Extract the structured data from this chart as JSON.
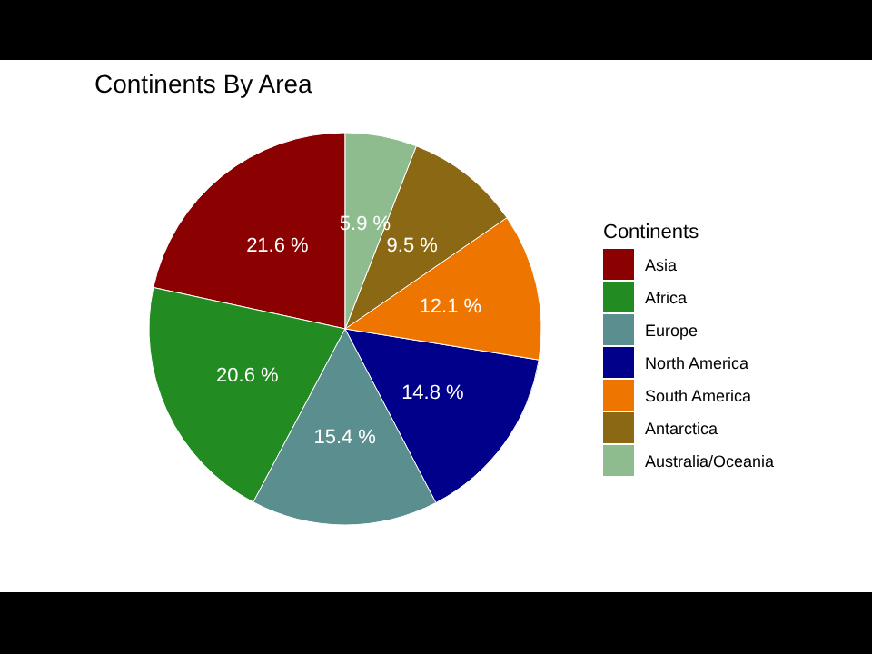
{
  "chart_data": {
    "type": "pie",
    "title": "Continents By Area",
    "legend_title": "Continents",
    "legend": "right",
    "categories": [
      "Asia",
      "Africa",
      "Europe",
      "North America",
      "South America",
      "Antarctica",
      "Australia/Oceania"
    ],
    "values": [
      21.6,
      20.6,
      15.4,
      14.8,
      12.1,
      9.5,
      5.9
    ],
    "value_labels": [
      "21.6 %",
      "20.6 %",
      "15.4 %",
      "14.8 %",
      "12.1 %",
      "9.5 %",
      "5.9 %"
    ],
    "colors": [
      "#8b0000",
      "#228b22",
      "#5b8e8e",
      "#00008b",
      "#ee7600",
      "#8b6914",
      "#8fbc8f"
    ]
  }
}
